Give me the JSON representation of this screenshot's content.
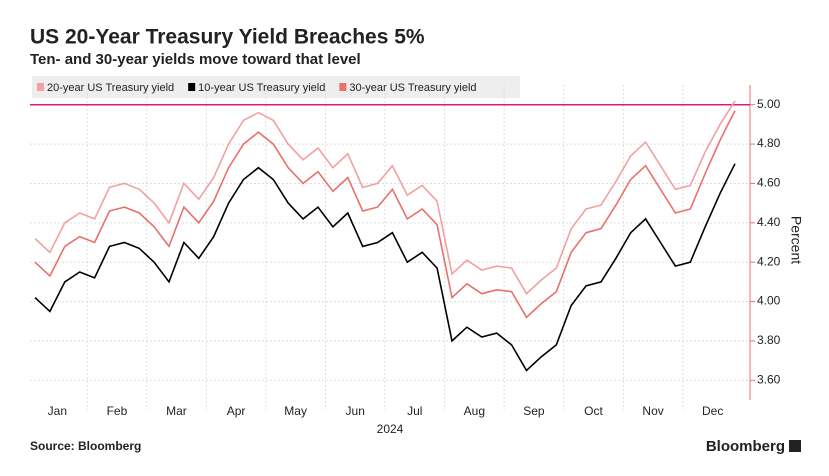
{
  "chart_data": {
    "type": "line",
    "title": "US 20-Year Treasury Yield Breaches 5%",
    "subtitle": "Ten- and 30-year yields move toward that level",
    "y_label": "Percent",
    "x_label": "2024",
    "source": "Source: Bloomberg",
    "brand": "Bloomberg",
    "categories": [
      null,
      "Jan",
      null,
      null,
      null,
      "Feb",
      null,
      null,
      null,
      "Mar",
      null,
      null,
      null,
      "Apr",
      null,
      null,
      null,
      "May",
      null,
      null,
      null,
      "Jun",
      null,
      null,
      null,
      "Jul",
      null,
      null,
      null,
      "Aug",
      null,
      null,
      null,
      "Sep",
      null,
      null,
      null,
      "Oct",
      null,
      null,
      null,
      "Nov",
      null,
      null,
      null,
      "Dec",
      null,
      null
    ],
    "series": [
      {
        "name": "20-year US Treasury yield",
        "color": "#f2a0a0",
        "values": [
          4.32,
          4.25,
          4.4,
          4.45,
          4.42,
          4.58,
          4.6,
          4.57,
          4.5,
          4.4,
          4.6,
          4.52,
          4.63,
          4.8,
          4.92,
          4.96,
          4.92,
          4.8,
          4.72,
          4.78,
          4.68,
          4.75,
          4.58,
          4.6,
          4.69,
          4.54,
          4.59,
          4.51,
          4.14,
          4.21,
          4.16,
          4.18,
          4.17,
          4.04,
          4.11,
          4.17,
          4.37,
          4.47,
          4.49,
          4.61,
          4.74,
          4.81,
          4.69,
          4.57,
          4.59,
          4.76,
          4.9,
          5.02
        ]
      },
      {
        "name": "10-year US Treasury yield",
        "color": "#000000",
        "values": [
          4.02,
          3.95,
          4.1,
          4.15,
          4.12,
          4.28,
          4.3,
          4.27,
          4.2,
          4.1,
          4.3,
          4.22,
          4.33,
          4.5,
          4.62,
          4.68,
          4.62,
          4.5,
          4.42,
          4.48,
          4.38,
          4.45,
          4.28,
          4.3,
          4.35,
          4.2,
          4.25,
          4.17,
          3.8,
          3.87,
          3.82,
          3.84,
          3.78,
          3.65,
          3.72,
          3.78,
          3.98,
          4.08,
          4.1,
          4.22,
          4.35,
          4.42,
          4.3,
          4.18,
          4.2,
          4.38,
          4.55,
          4.7
        ]
      },
      {
        "name": "30-year US Treasury yield",
        "color": "#e8716d",
        "values": [
          4.2,
          4.13,
          4.28,
          4.33,
          4.3,
          4.46,
          4.48,
          4.45,
          4.38,
          4.28,
          4.48,
          4.4,
          4.51,
          4.68,
          4.8,
          4.86,
          4.8,
          4.68,
          4.6,
          4.66,
          4.56,
          4.63,
          4.46,
          4.48,
          4.57,
          4.42,
          4.47,
          4.39,
          4.02,
          4.09,
          4.04,
          4.06,
          4.05,
          3.92,
          3.99,
          4.05,
          4.25,
          4.35,
          4.37,
          4.49,
          4.62,
          4.69,
          4.57,
          4.45,
          4.47,
          4.65,
          4.82,
          4.97
        ]
      }
    ],
    "ylim": [
      3.5,
      5.1
    ],
    "yticks": [
      {
        "value": 3.6,
        "label": "3.60"
      },
      {
        "value": 3.8,
        "label": "3.80"
      },
      {
        "value": 4.0,
        "label": "4.00"
      },
      {
        "value": 4.2,
        "label": "4.20"
      },
      {
        "value": 4.4,
        "label": "4.40"
      },
      {
        "value": 4.6,
        "label": "4.60"
      },
      {
        "value": 4.8,
        "label": "4.80"
      },
      {
        "value": 5.0,
        "label": "5.00"
      }
    ],
    "reference_line": {
      "value": 5.0,
      "color": "#e0158a"
    },
    "grid": true,
    "legend": "top"
  }
}
